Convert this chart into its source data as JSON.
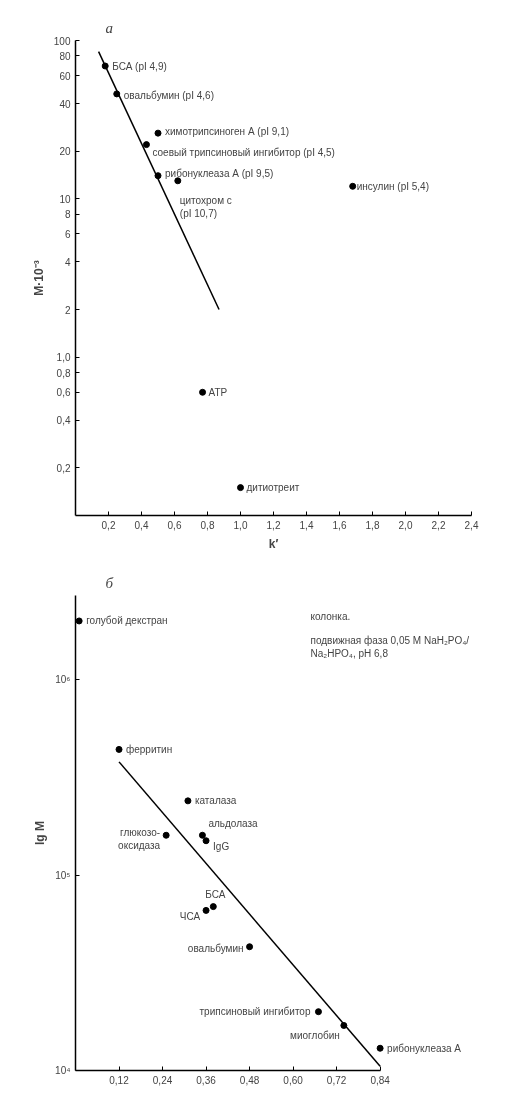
{
  "chart_data": [
    {
      "type": "scatter",
      "title": "a",
      "xlabel": "k′",
      "ylabel": "M·10⁻³",
      "log": "y",
      "xlim": [
        0,
        2.4
      ],
      "ylim": [
        0.1,
        100
      ],
      "xticks": [
        {
          "value": 0.2,
          "label": "0,2"
        },
        {
          "value": 0.4,
          "label": "0,4"
        },
        {
          "value": 0.6,
          "label": "0,6"
        },
        {
          "value": 0.8,
          "label": "0,8"
        },
        {
          "value": 1.0,
          "label": "1,0"
        },
        {
          "value": 1.2,
          "label": "1,2"
        },
        {
          "value": 1.4,
          "label": "1,4"
        },
        {
          "value": 1.6,
          "label": "1,6"
        },
        {
          "value": 1.8,
          "label": "1,8"
        },
        {
          "value": 2.0,
          "label": "2,0"
        },
        {
          "value": 2.2,
          "label": "2,2"
        },
        {
          "value": 2.4,
          "label": "2,4"
        }
      ],
      "yticks": [
        100,
        80,
        60,
        40,
        20,
        10,
        8,
        6,
        4,
        2,
        {
          "value": 1.0,
          "label": "1,0"
        },
        {
          "value": 0.8,
          "label": "0,8"
        },
        {
          "value": 0.6,
          "label": "0,6"
        },
        {
          "value": 0.4,
          "label": "0,4"
        },
        {
          "value": 0.2,
          "label": "0,2"
        }
      ],
      "series": [
        {
          "color": "#000000",
          "marker": "circle",
          "x": [
            0.18,
            0.25,
            0.5,
            0.43,
            0.5,
            0.62,
            1.68,
            0.77,
            1.0
          ],
          "values": [
            69,
            46,
            26,
            22,
            14,
            13,
            12,
            0.6,
            0.15
          ]
        },
        {
          "type": "line",
          "color": "#000000",
          "x": [
            0.14,
            0.87
          ],
          "values": [
            85,
            2
          ]
        }
      ],
      "annotations": [
        {
          "text": "БСА (pI 4,9)",
          "x": 0.18,
          "y": 69
        },
        {
          "text": "овальбумин (pI 4,6)",
          "x": 0.25,
          "y": 46
        },
        {
          "text": "химотрипсиноген А (pI 9,1)",
          "x": 0.5,
          "y": 26
        },
        {
          "text": "соевый трипсиновый ингибитор (pI 4,5)",
          "x": 0.43,
          "y": 22
        },
        {
          "text": "рибонуклеаза А (pI 9,5)",
          "x": 0.5,
          "y": 14
        },
        {
          "text": "цитохром с\n(pI 10,7)",
          "x": 0.62,
          "y": 13
        },
        {
          "text": "инсулин (pI 5,4)",
          "x": 1.68,
          "y": 12
        },
        {
          "text": "ATP",
          "x": 0.77,
          "y": 0.6
        },
        {
          "text": "дитиотреит",
          "x": 1.0,
          "y": 0.15
        }
      ]
    },
    {
      "type": "scatter",
      "title": "б",
      "ylabel": "lg M",
      "log": "y",
      "xlim": [
        0,
        0.84
      ],
      "ylim": [
        10000,
        2700000
      ],
      "xticks": [
        {
          "value": 0.12,
          "label": "0,12"
        },
        {
          "value": 0.24,
          "label": "0,24"
        },
        {
          "value": 0.36,
          "label": "0,36"
        },
        {
          "value": 0.48,
          "label": "0,48"
        },
        {
          "value": 0.6,
          "label": "0,60"
        },
        {
          "value": 0.72,
          "label": "0,72"
        },
        {
          "value": 0.84,
          "label": "0,84"
        }
      ],
      "yticks": [
        {
          "value": 10000,
          "label": "10⁴"
        },
        {
          "value": 100000,
          "label": "10⁵"
        },
        {
          "value": 1000000,
          "label": "10⁶"
        }
      ],
      "series": [
        {
          "color": "#000000",
          "marker": "circle",
          "x": [
            0.01,
            0.12,
            0.31,
            0.35,
            0.36,
            0.25,
            0.38,
            0.36,
            0.48,
            0.67,
            0.74,
            0.84
          ],
          "values": [
            2000000,
            440000,
            240000,
            160000,
            150000,
            160000,
            69000,
            66000,
            43000,
            20000,
            17000,
            13000
          ]
        },
        {
          "type": "line",
          "color": "#000000",
          "x": [
            0.12,
            0.84
          ],
          "values": [
            380000,
            10500
          ]
        }
      ],
      "annotations": [
        {
          "text": "голубой декстран",
          "x": 0.01,
          "y": 2000000
        },
        {
          "text": "ферритин",
          "x": 0.12,
          "y": 440000
        },
        {
          "text": "каталаза",
          "x": 0.31,
          "y": 240000
        },
        {
          "text": "альдолаза",
          "x": 0.35,
          "y": 160000
        },
        {
          "text": "IgG",
          "x": 0.36,
          "y": 150000
        },
        {
          "text": "глюкозо-\nоксидаза",
          "x": 0.25,
          "y": 160000
        },
        {
          "text": "БСА",
          "x": 0.38,
          "y": 69000
        },
        {
          "text": "ЧСА",
          "x": 0.36,
          "y": 66000
        },
        {
          "text": "овальбумин",
          "x": 0.48,
          "y": 43000
        },
        {
          "text": "трипсиновый ингибитор",
          "x": 0.67,
          "y": 20000
        },
        {
          "text": "миоглобин",
          "x": 0.74,
          "y": 17000
        },
        {
          "text": "рибонуклеаза А",
          "x": 0.84,
          "y": 13000
        },
        "колонка.",
        "подвижная фаза 0,05 M NaH₂PO₄/\nNa₂HPO₄, pH 6,8"
      ]
    }
  ]
}
